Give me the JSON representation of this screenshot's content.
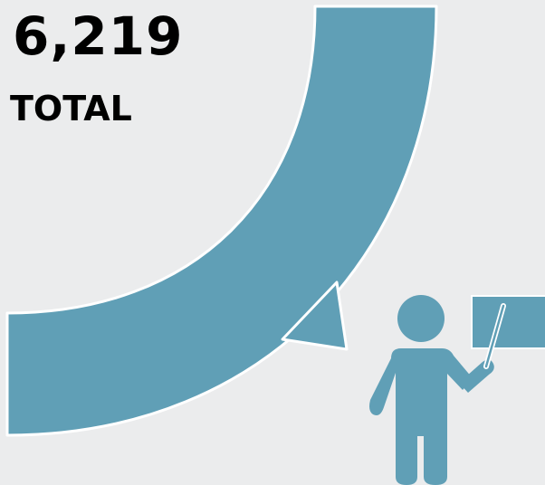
{
  "total": {
    "value": "6,219",
    "label": "TOTAL"
  },
  "colors": {
    "background": "#ebeced",
    "accent": "#609fb6",
    "text": "#000000",
    "outline": "#ffffff"
  },
  "icons": {
    "figure": "person-presenting-icon",
    "board": "presentation-board-icon"
  }
}
